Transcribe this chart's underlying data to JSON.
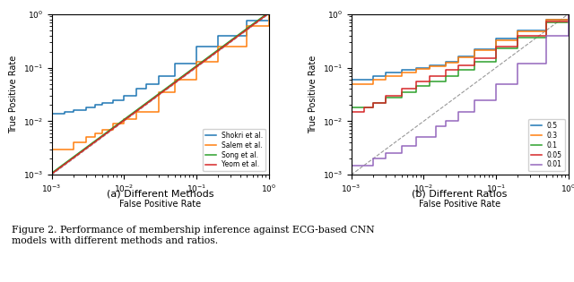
{
  "subplot_a_title": "(a) Different Methods",
  "subplot_b_title": "(b) Different Ratios",
  "figure_caption": "Figure 2. Performance of membership inference against ECG-based CNN\nmodels with different methods and ratios.",
  "xlabel": "False Positive Rate",
  "ylabel": "True Positive Rate",
  "diagonal_color": "#999999",
  "diagonal_style": "--",
  "lines_a_labels": [
    "Shokri et al.",
    "Salem et al.",
    "Song et al.",
    "Yeom et al."
  ],
  "lines_a_colors": [
    "#1f77b4",
    "#ff7f0e",
    "#2ca02c",
    "#d62728"
  ],
  "lines_b_labels": [
    "0.5",
    "0.3",
    "0.1",
    "0.05",
    "0.01"
  ],
  "lines_b_colors": [
    "#1f77b4",
    "#ff7f0e",
    "#2ca02c",
    "#d62728",
    "#9467bd"
  ]
}
